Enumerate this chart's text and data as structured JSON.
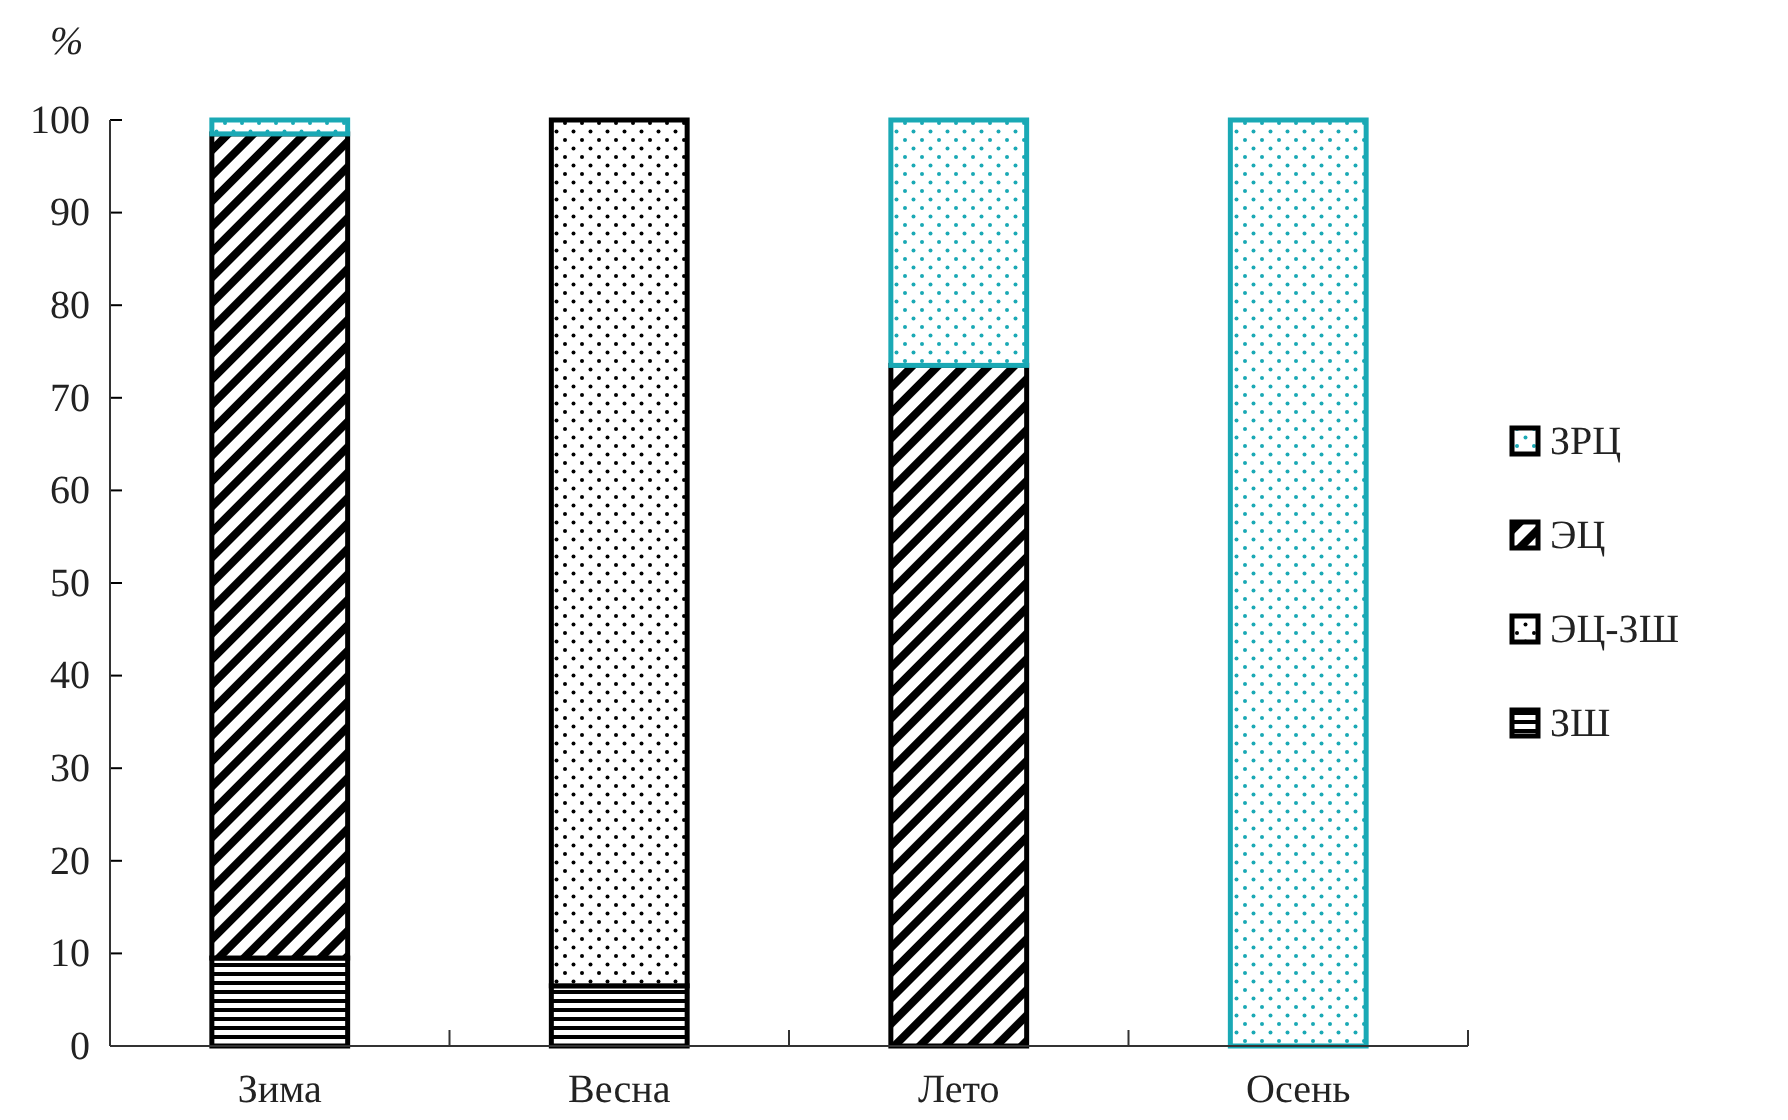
{
  "chart_data": {
    "type": "bar",
    "stacked": true,
    "ylabel": "%",
    "categories": [
      "Зима",
      "Весна",
      "Лето",
      "Осень"
    ],
    "series": [
      {
        "name": "ЗШ",
        "color": "#000000",
        "values": [
          9.5,
          6.5,
          0,
          0
        ]
      },
      {
        "name": "ЭЦ-ЗШ",
        "color": "#000000",
        "values": [
          0,
          93.5,
          0,
          0
        ]
      },
      {
        "name": "ЭЦ",
        "color": "#000000",
        "values": [
          89,
          0,
          73.5,
          0
        ]
      },
      {
        "name": "ЗРЦ",
        "color": "#1aa9b5",
        "values": [
          1.5,
          0,
          26.5,
          100
        ]
      }
    ],
    "ylim": [
      0,
      100
    ],
    "yticks": [
      0,
      10,
      20,
      30,
      40,
      50,
      60,
      70,
      80,
      90,
      100
    ],
    "grid": false,
    "legend": "right"
  }
}
